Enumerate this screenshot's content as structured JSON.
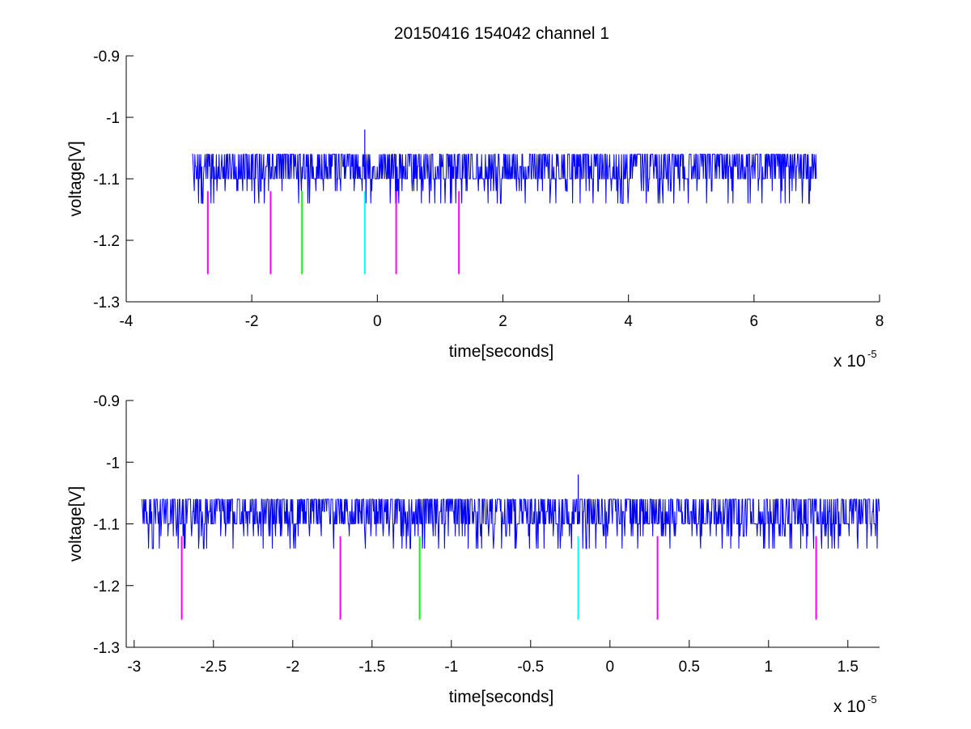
{
  "figure": {
    "title": "20150416 154042 channel 1"
  },
  "chart_data": [
    {
      "type": "line",
      "title": "20150416 154042 channel 1",
      "xlabel": "time[seconds]",
      "ylabel": "voltage[V]",
      "x_exponent_base": "x 10",
      "x_exponent": "-5",
      "xlim": [
        -4,
        8
      ],
      "ylim": [
        -1.3,
        -0.9
      ],
      "xticks": [
        -4,
        -2,
        0,
        2,
        4,
        6,
        8
      ],
      "xtick_labels": [
        "-4",
        "-2",
        "0",
        "2",
        "4",
        "6",
        "8"
      ],
      "yticks": [
        -0.9,
        -1.0,
        -1.1,
        -1.2,
        -1.3
      ],
      "ytick_labels": [
        "-0.9",
        "-1",
        "-1.1",
        "-1.2",
        "-1.3"
      ],
      "grid": false,
      "legend": "none",
      "signal": {
        "color": "#0000ff",
        "x_start": -2.95,
        "x_end": 7.0,
        "baseline": -1.1,
        "levels": [
          -1.06,
          -1.08,
          -1.1,
          -1.12,
          -1.14
        ],
        "spike": {
          "x": -0.2,
          "y": -1.02
        }
      },
      "markers": [
        {
          "x": -2.7,
          "y_top": -1.12,
          "y_bottom": -1.255,
          "color": "#ff00ff"
        },
        {
          "x": -1.7,
          "y_top": -1.12,
          "y_bottom": -1.255,
          "color": "#ff00ff"
        },
        {
          "x": -1.2,
          "y_top": -1.12,
          "y_bottom": -1.255,
          "color": "#00ff00"
        },
        {
          "x": -0.2,
          "y_top": -1.12,
          "y_bottom": -1.255,
          "color": "#00ffff"
        },
        {
          "x": 0.3,
          "y_top": -1.12,
          "y_bottom": -1.255,
          "color": "#ff00ff"
        },
        {
          "x": 1.3,
          "y_top": -1.12,
          "y_bottom": -1.255,
          "color": "#ff00ff"
        }
      ]
    },
    {
      "type": "line",
      "title": "",
      "xlabel": "time[seconds]",
      "ylabel": "voltage[V]",
      "x_exponent_base": "x 10",
      "x_exponent": "-5",
      "xlim": [
        -3.05,
        1.7
      ],
      "ylim": [
        -1.3,
        -0.9
      ],
      "xticks": [
        -3,
        -2.5,
        -2,
        -1.5,
        -1,
        -0.5,
        0,
        0.5,
        1,
        1.5
      ],
      "xtick_labels": [
        "-3",
        "-2.5",
        "-2",
        "-1.5",
        "-1",
        "-0.5",
        "0",
        "0.5",
        "1",
        "1.5"
      ],
      "yticks": [
        -0.9,
        -1.0,
        -1.1,
        -1.2,
        -1.3
      ],
      "ytick_labels": [
        "-0.9",
        "-1",
        "-1.1",
        "-1.2",
        "-1.3"
      ],
      "grid": false,
      "legend": "none",
      "signal": {
        "color": "#0000ff",
        "x_start": -2.95,
        "x_end": 1.7,
        "baseline": -1.1,
        "levels": [
          -1.06,
          -1.08,
          -1.1,
          -1.12,
          -1.14
        ],
        "spike": {
          "x": -0.2,
          "y": -1.02
        }
      },
      "markers": [
        {
          "x": -2.7,
          "y_top": -1.12,
          "y_bottom": -1.255,
          "color": "#ff00ff"
        },
        {
          "x": -1.7,
          "y_top": -1.12,
          "y_bottom": -1.255,
          "color": "#ff00ff"
        },
        {
          "x": -1.2,
          "y_top": -1.12,
          "y_bottom": -1.255,
          "color": "#00ff00"
        },
        {
          "x": -0.2,
          "y_top": -1.12,
          "y_bottom": -1.255,
          "color": "#00ffff"
        },
        {
          "x": 0.3,
          "y_top": -1.12,
          "y_bottom": -1.255,
          "color": "#ff00ff"
        },
        {
          "x": 1.3,
          "y_top": -1.12,
          "y_bottom": -1.255,
          "color": "#ff00ff"
        }
      ]
    }
  ]
}
